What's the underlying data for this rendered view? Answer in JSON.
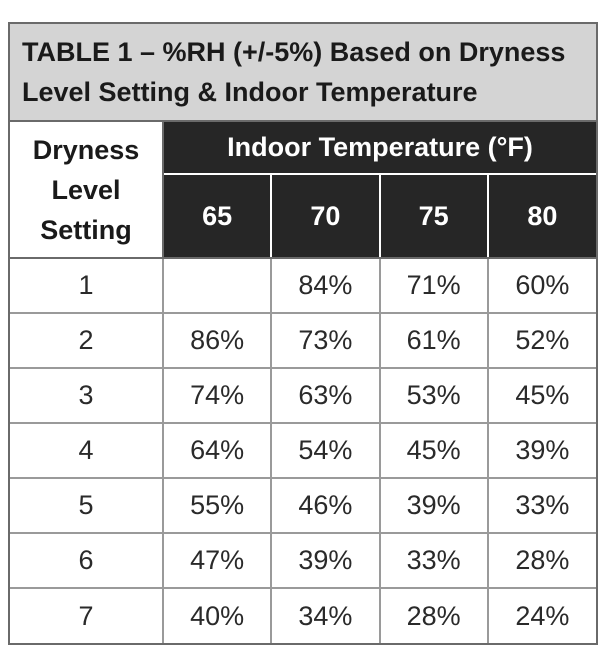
{
  "title_lines": [
    "TABLE 1 – %RH (+/-5%) Based on Dryness",
    "Level Setting & Indoor Temperature"
  ],
  "row_header_lines": [
    "Dryness",
    "Level",
    "Setting"
  ],
  "column_group_header": "Indoor Temperature (°F)",
  "columns": [
    "65",
    "70",
    "75",
    "80"
  ],
  "rows": [
    {
      "setting": "1",
      "values": [
        "",
        "84%",
        "71%",
        "60%"
      ]
    },
    {
      "setting": "2",
      "values": [
        "86%",
        "73%",
        "61%",
        "52%"
      ]
    },
    {
      "setting": "3",
      "values": [
        "74%",
        "63%",
        "53%",
        "45%"
      ]
    },
    {
      "setting": "4",
      "values": [
        "64%",
        "54%",
        "45%",
        "39%"
      ]
    },
    {
      "setting": "5",
      "values": [
        "55%",
        "46%",
        "39%",
        "33%"
      ]
    },
    {
      "setting": "6",
      "values": [
        "47%",
        "39%",
        "33%",
        "28%"
      ]
    },
    {
      "setting": "7",
      "values": [
        "40%",
        "34%",
        "28%",
        "24%"
      ]
    }
  ],
  "colors": {
    "title_background": "#d4d4d4",
    "header_background": "#262626",
    "header_text": "#ffffff"
  }
}
